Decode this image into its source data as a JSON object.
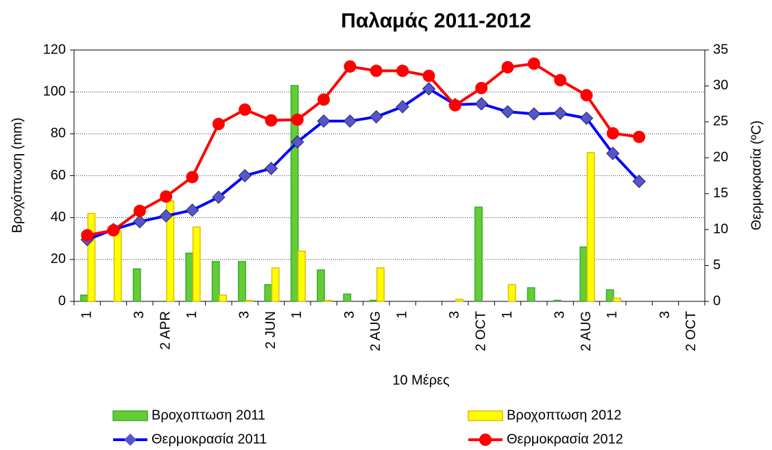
{
  "chart_data": {
    "type": "bar",
    "title": "Παλαμάς 2011-2012",
    "x_label": "10  Μέρες",
    "y_label": "Βροχόπτωση (mm)",
    "y2_label": "Θερμοκρασία (ºC)",
    "categories": [
      "1",
      null,
      "3",
      "2 APR",
      "1",
      null,
      "3",
      "2 JUN",
      "1",
      null,
      "3",
      "2 AUG",
      "1",
      null,
      "3",
      "2 OCT",
      "1",
      null,
      "3",
      "2 AUG",
      "1",
      null,
      "3",
      "2 OCT"
    ],
    "ylim": [
      0,
      120
    ],
    "yticks": [
      0,
      20,
      40,
      60,
      80,
      100,
      120
    ],
    "y2lim": [
      0,
      35
    ],
    "y2ticks": [
      0,
      5,
      10,
      15,
      20,
      25,
      30,
      35
    ],
    "grid": true,
    "series": [
      {
        "name": "Βροχoπτωση 2011",
        "type": "bar",
        "color": "#66cc33",
        "edge": "#33aa33",
        "values": [
          3,
          0,
          15.5,
          0,
          23,
          19,
          19,
          8,
          103,
          15,
          3.5,
          0.5,
          0,
          0,
          0,
          45,
          0,
          6.5,
          0.5,
          26,
          5.5,
          0,
          0,
          0
        ]
      },
      {
        "name": "Βροχoπτωση 2012",
        "type": "bar",
        "color": "#ffff00",
        "edge": "#e6b800",
        "values": [
          42,
          34,
          0,
          48,
          35.5,
          3,
          0.5,
          16,
          24,
          0.5,
          0,
          16,
          0,
          0,
          1,
          0,
          8,
          0,
          0,
          71,
          1.5,
          0,
          0,
          0
        ]
      },
      {
        "name": "Θερμοκρασία 2011",
        "type": "line",
        "axis": "y2",
        "color": "#0000ff",
        "marker": "diamond",
        "marker_color": "#5555cc",
        "values": [
          8.6,
          10.0,
          11.1,
          11.9,
          12.7,
          14.5,
          17.5,
          18.5,
          22.2,
          25.1,
          25.1,
          25.7,
          27.1,
          29.6,
          27.4,
          27.5,
          26.4,
          26.1,
          26.2,
          25.5,
          20.6,
          16.7,
          null,
          null
        ]
      },
      {
        "name": "Θερμοκρασία 2012",
        "type": "line",
        "axis": "y2",
        "color": "#ff0000",
        "marker": "circle",
        "marker_color": "#ff0000",
        "values": [
          9.2,
          9.9,
          12.6,
          14.6,
          17.3,
          24.7,
          26.7,
          25.2,
          25.3,
          28.1,
          32.7,
          32.1,
          32.1,
          31.4,
          27.3,
          29.7,
          32.6,
          33.1,
          30.8,
          28.7,
          23.4,
          22.9,
          null,
          null
        ]
      }
    ]
  }
}
